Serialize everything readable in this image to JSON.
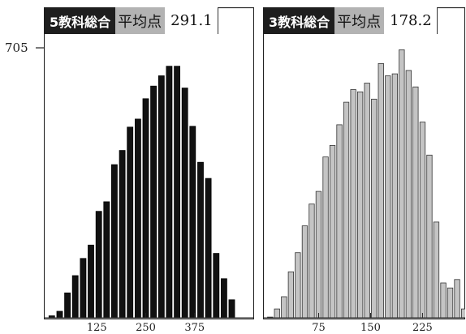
{
  "charts": [
    {
      "header": {
        "title": "5教科総合",
        "label": "平均点",
        "value": "291.1"
      }
    },
    {
      "header": {
        "title": "3教科総合",
        "label": "平均点",
        "value": "178.2"
      }
    }
  ],
  "y_axis_label": "705",
  "colors": {
    "left_bars": "#111111",
    "right_bars": "#c4c4c4",
    "header_dark": "#1e1e1e",
    "header_gray": "#b3b3b3"
  },
  "chart_data": [
    {
      "type": "bar",
      "title": "5教科総合",
      "x_tick_labels": [
        "125",
        "250",
        "375"
      ],
      "x_ticks": [
        125,
        250,
        375
      ],
      "bin_width": 20,
      "x": [
        10,
        30,
        50,
        70,
        90,
        110,
        130,
        150,
        170,
        190,
        210,
        230,
        250,
        270,
        290,
        310,
        330,
        350,
        370,
        390,
        410,
        430,
        450,
        470
      ],
      "values": [
        5,
        17,
        65,
        110,
        155,
        190,
        278,
        303,
        400,
        437,
        498,
        519,
        572,
        605,
        632,
        657,
        657,
        600,
        500,
        406,
        364,
        168,
        102,
        47
      ],
      "ylim": [
        0,
        705
      ],
      "y_ticks": [
        705
      ]
    },
    {
      "type": "bar",
      "title": "3教科総合",
      "x_tick_labels": [
        "75",
        "150",
        "225"
      ],
      "x_ticks": [
        75,
        150,
        225
      ],
      "bin_width": 10,
      "x": [
        5,
        15,
        25,
        35,
        45,
        55,
        65,
        75,
        85,
        95,
        105,
        115,
        125,
        135,
        145,
        155,
        165,
        175,
        185,
        195,
        205,
        215,
        225,
        235,
        245,
        255,
        265,
        275,
        285
      ],
      "values": [
        2,
        23,
        55,
        120,
        170,
        240,
        297,
        330,
        420,
        450,
        504,
        563,
        596,
        590,
        613,
        571,
        664,
        632,
        637,
        700,
        646,
        603,
        511,
        425,
        250,
        91,
        78,
        100,
        23
      ],
      "ylim": [
        0,
        705
      ],
      "y_ticks": [
        705
      ]
    }
  ]
}
